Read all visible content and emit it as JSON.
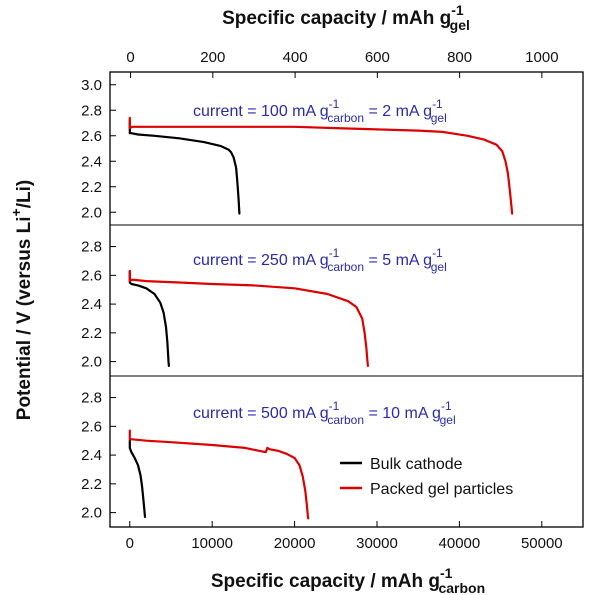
{
  "chart_data": {
    "type": "line",
    "top_axis": {
      "title_main": "Specific capacity / mAh g",
      "title_sub": "gel",
      "title_sup": "-1",
      "range": [
        -50,
        1100
      ],
      "ticks": [
        0,
        200,
        400,
        600,
        800,
        1000
      ],
      "tick_labels": [
        "0",
        "200",
        "400",
        "600",
        "800",
        "1000"
      ]
    },
    "bottom_axis": {
      "title_main": "Specific capacity / mAh g",
      "title_sub": "carbon",
      "title_sup": "-1",
      "range": [
        -2400,
        55000
      ],
      "ticks": [
        0,
        10000,
        20000,
        30000,
        40000,
        50000
      ],
      "tick_labels": [
        "0",
        "10000",
        "20000",
        "30000",
        "40000",
        "50000"
      ]
    },
    "y_axis": {
      "title_main": "Potential / V (versus Li",
      "title_sup": "+",
      "title_end": "/Li)"
    },
    "legend": {
      "placement": "bottom-right of bottom panel",
      "entries": [
        {
          "label": "Bulk cathode",
          "color": "#000000"
        },
        {
          "label": "Packed gel particles",
          "color": "#dd0000"
        }
      ]
    },
    "panels": [
      {
        "annotation": {
          "a": "current = 100 mA g",
          "a_sup": "-1",
          "a_sub": "carbon",
          "b": " = 2 mA g",
          "b_sup": "-1",
          "b_sub": "gel"
        },
        "ylim": [
          1.9,
          3.1
        ],
        "yticks": [
          2.0,
          2.2,
          2.4,
          2.6,
          2.8,
          3.0
        ],
        "ytick_labels": [
          "2.0",
          "2.2",
          "2.4",
          "2.6",
          "2.8",
          "3.0"
        ],
        "series": [
          {
            "name": "Bulk cathode",
            "color": "#000000",
            "x": [
              0,
              0,
              200,
              1000,
              3000,
              6000,
              9000,
              11000,
              12000,
              12300,
              12600,
              12900,
              13000,
              13100,
              13200,
              13300
            ],
            "y": [
              2.72,
              2.62,
              2.62,
              2.61,
              2.6,
              2.58,
              2.55,
              2.52,
              2.49,
              2.47,
              2.43,
              2.35,
              2.28,
              2.2,
              2.1,
              1.99
            ]
          },
          {
            "name": "Packed gel particles",
            "color": "#dd0000",
            "x": [
              0,
              0,
              300,
              2000,
              5000,
              10000,
              15000,
              20000,
              25000,
              30000,
              35000,
              38000,
              41000,
              43000,
              44500,
              45200,
              45600,
              45900,
              46100,
              46300,
              46400
            ],
            "y": [
              2.74,
              2.66,
              2.67,
              2.67,
              2.67,
              2.67,
              2.67,
              2.67,
              2.66,
              2.65,
              2.64,
              2.63,
              2.6,
              2.57,
              2.53,
              2.48,
              2.4,
              2.3,
              2.18,
              2.06,
              1.99
            ]
          }
        ]
      },
      {
        "annotation": {
          "a": "current = 250 mA g",
          "a_sup": "-1",
          "a_sub": "carbon",
          "b": " = 5 mA g",
          "b_sup": "-1",
          "b_sub": "gel"
        },
        "ylim": [
          1.9,
          2.95
        ],
        "yticks": [
          2.0,
          2.2,
          2.4,
          2.6,
          2.8
        ],
        "ytick_labels": [
          "2.0",
          "2.2",
          "2.4",
          "2.6",
          "2.8"
        ],
        "series": [
          {
            "name": "Bulk cathode",
            "color": "#000000",
            "x": [
              0,
              0,
              200,
              1000,
              2000,
              3000,
              3700,
              4100,
              4400,
              4550,
              4650,
              4700,
              4750
            ],
            "y": [
              2.63,
              2.55,
              2.54,
              2.53,
              2.51,
              2.47,
              2.41,
              2.34,
              2.24,
              2.14,
              2.05,
              2.0,
              1.97
            ]
          },
          {
            "name": "Packed gel particles",
            "color": "#dd0000",
            "x": [
              0,
              0,
              300,
              2000,
              6000,
              10000,
              15000,
              20000,
              24000,
              26500,
              27500,
              28200,
              28500,
              28700,
              28800,
              28900
            ],
            "y": [
              2.63,
              2.56,
              2.57,
              2.56,
              2.55,
              2.54,
              2.53,
              2.51,
              2.47,
              2.42,
              2.38,
              2.3,
              2.2,
              2.1,
              2.03,
              1.97
            ]
          }
        ]
      },
      {
        "annotation": {
          "a": "current = 500 mA g",
          "a_sup": "-1",
          "a_sub": "carbon",
          "b": " = 10 mA g",
          "b_sup": "-1",
          "b_sub": "gel"
        },
        "ylim": [
          1.9,
          2.95
        ],
        "yticks": [
          2.0,
          2.2,
          2.4,
          2.6,
          2.8
        ],
        "ytick_labels": [
          "2.0",
          "2.2",
          "2.4",
          "2.6",
          "2.8"
        ],
        "series": [
          {
            "name": "Bulk cathode",
            "color": "#000000",
            "x": [
              0,
              0,
              200,
              600,
              1000,
              1300,
              1500,
              1650,
              1750,
              1800,
              1850
            ],
            "y": [
              2.5,
              2.45,
              2.42,
              2.38,
              2.33,
              2.26,
              2.18,
              2.09,
              2.03,
              2.0,
              1.97
            ]
          },
          {
            "name": "Packed gel particles",
            "color": "#dd0000",
            "x": [
              0,
              0,
              300,
              2000,
              5000,
              10000,
              14000,
              16500,
              16700,
              17000,
              18000,
              19000,
              20000,
              20600,
              21000,
              21300,
              21500,
              21600,
              21650
            ],
            "y": [
              2.57,
              2.51,
              2.51,
              2.5,
              2.49,
              2.47,
              2.45,
              2.42,
              2.45,
              2.44,
              2.43,
              2.41,
              2.38,
              2.33,
              2.25,
              2.15,
              2.05,
              1.98,
              1.96
            ]
          }
        ]
      }
    ]
  }
}
